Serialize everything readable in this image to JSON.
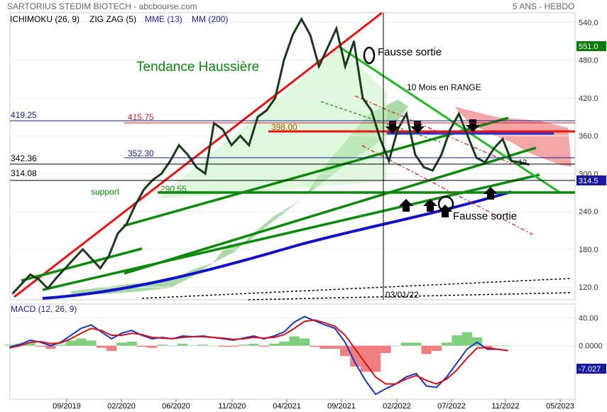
{
  "header": {
    "title": "SARTORIUS STEDIM BIOTECH - abcbourse.com",
    "timeframe": "5 ANS - HEBDO"
  },
  "indicators": [
    {
      "label": "ICHIMOKU (26, 9)",
      "color": "#000000"
    },
    {
      "label": "ZIG ZAG (5)",
      "color": "#000000"
    },
    {
      "label": "MME (13)",
      "color": "#1a1aff"
    },
    {
      "label": "MM (200)",
      "color": "#1a1aa0"
    }
  ],
  "annotations": {
    "trend": "Tendance Haussière",
    "fausse_sortie_top": "Fausse sortie",
    "fausse_sortie_bottom": "Fausse sortie",
    "range": "10 Mois en RANGE",
    "support": "support",
    "date_marker": "03/01/22",
    "level_415": "415.75",
    "level_398": "398.00",
    "level_352": "352.30",
    "level_290": "290.55",
    "level_419": "419.25",
    "level_342": "342.36",
    "level_314": "314.08",
    "small_12": "12"
  },
  "chart_data": [
    {
      "type": "line",
      "title": "SARTORIUS STEDIM BIOTECH",
      "subtitle": "5 ANS - HEBDO",
      "x_ticks": [
        "09/2019",
        "02/2020",
        "06/2020",
        "11/2020",
        "04/2021",
        "09/2021",
        "02/2022",
        "07/2022",
        "11/2022",
        "05/2023"
      ],
      "y_ticks": [
        120,
        180,
        240,
        300,
        360,
        420,
        480,
        540
      ],
      "ylim": [
        100,
        555
      ],
      "last_price": 314.5,
      "max_label": 551.0,
      "levels": [
        419.25,
        415.75,
        398.0,
        352.3,
        342.36,
        314.08,
        290.55
      ],
      "series": [
        {
          "name": "",
          "values": [
            110,
            125,
            140,
            132,
            118,
            135,
            150,
            165,
            180,
            165,
            150,
            170,
            205,
            220,
            250,
            275,
            290,
            300,
            320,
            345,
            330,
            310,
            300,
            380,
            370,
            345,
            360,
            345,
            390,
            400,
            420,
            480,
            520,
            545,
            520,
            470,
            500,
            530,
            470,
            510,
            420,
            400,
            355,
            320,
            370,
            395,
            330,
            310,
            305,
            330,
            370,
            395,
            360,
            325,
            318,
            340,
            355,
            320,
            318,
            314.5
          ]
        }
      ]
    },
    {
      "type": "line",
      "title": "MACD (12, 26, 9)",
      "y_ticks": [
        40.0,
        0.0
      ],
      "ylim": [
        -75,
        58
      ],
      "last_value": -7.027,
      "series": [
        {
          "name": "",
          "values": [
            -2,
            2,
            8,
            5,
            0,
            5,
            15,
            25,
            30,
            20,
            10,
            18,
            22,
            15,
            10,
            12,
            10,
            14,
            13,
            14,
            12,
            10,
            8,
            11,
            14,
            10,
            14,
            20,
            34,
            42,
            36,
            30,
            25,
            5,
            -25,
            -50,
            -70,
            -62,
            -55,
            -45,
            -40,
            -58,
            -60,
            -45,
            -25,
            -5,
            5,
            -5,
            -5,
            -7
          ]
        },
        {
          "name": "",
          "values": [
            -3,
            0,
            5,
            6,
            3,
            4,
            10,
            18,
            25,
            22,
            15,
            15,
            18,
            16,
            12,
            11,
            10,
            12,
            13,
            13,
            12,
            11,
            9,
            10,
            12,
            11,
            12,
            16,
            25,
            35,
            37,
            33,
            28,
            15,
            -5,
            -25,
            -45,
            -55,
            -55,
            -48,
            -43,
            -50,
            -55,
            -48,
            -35,
            -18,
            -3,
            -3,
            -5,
            -7
          ]
        }
      ]
    }
  ]
}
